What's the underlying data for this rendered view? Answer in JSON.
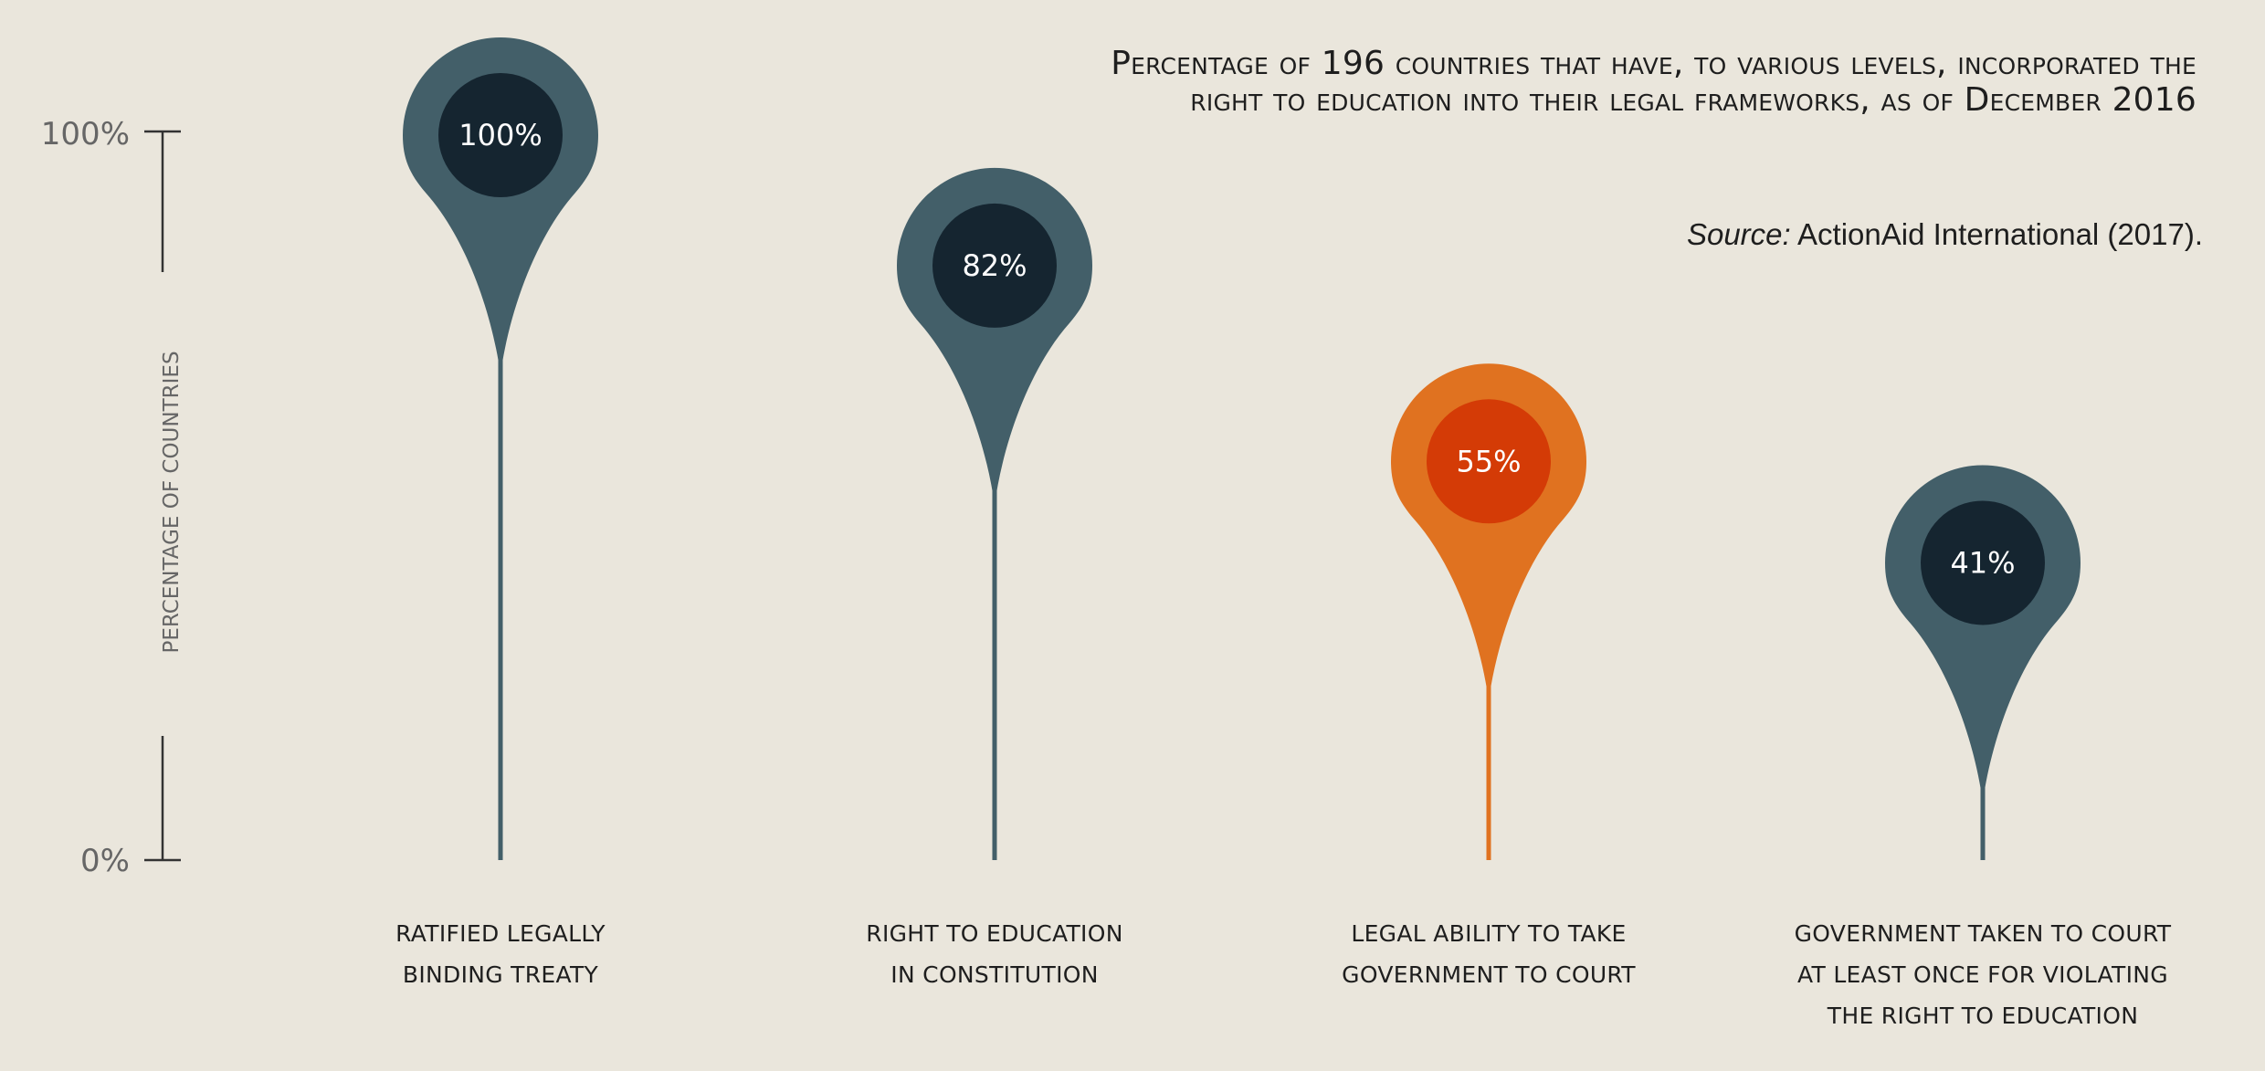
{
  "title": {
    "line1": "Percentage of 196 countries that have, to various levels, incorporated the",
    "line2": "right to education into their legal frameworks, as of December 2016"
  },
  "source": {
    "label": "Source:",
    "text": " ActionAid International (2017)."
  },
  "colors": {
    "background": "#eae6dc",
    "pin_outer": "#435f69",
    "pin_inner": "#152530",
    "highlight_outer": "#e07220",
    "highlight_inner": "#d43b06",
    "axis": "#333333",
    "axis_text": "#666666"
  },
  "chart_data": {
    "type": "bar",
    "ylabel": "PERCENTAGE OF COUNTRIES",
    "ylim": [
      0,
      100
    ],
    "y_ticks": [
      "0%",
      "100%"
    ],
    "grid": false,
    "categories": [
      [
        "RATIFIED LEGALLY",
        "BINDING TREATY"
      ],
      [
        "RIGHT TO EDUCATION",
        "IN CONSTITUTION"
      ],
      [
        "LEGAL ABILITY TO TAKE",
        "GOVERNMENT TO COURT"
      ],
      [
        "GOVERNMENT TAKEN TO COURT",
        "AT LEAST ONCE FOR VIOLATING",
        "THE RIGHT TO EDUCATION"
      ]
    ],
    "values": [
      100,
      82,
      55,
      41
    ],
    "value_labels": [
      "100%",
      "82%",
      "55%",
      "41%"
    ],
    "highlighted_index": 2
  }
}
